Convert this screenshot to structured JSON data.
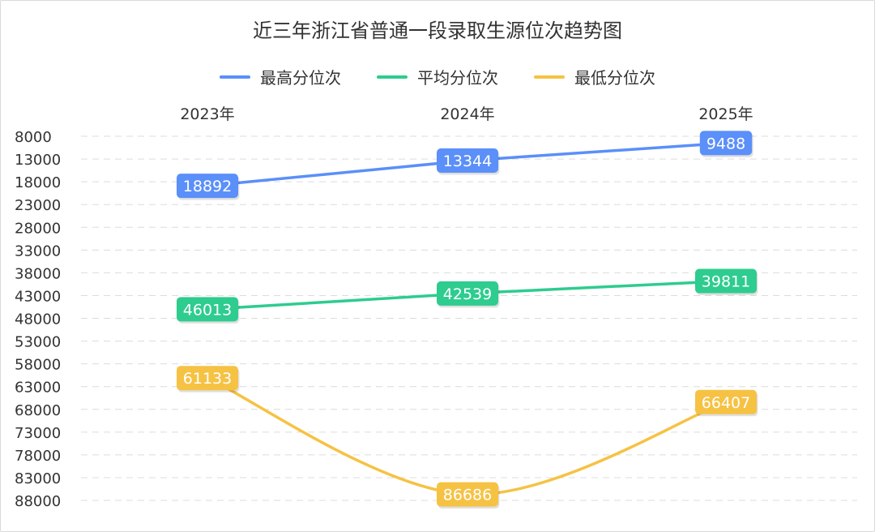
{
  "chart_data": {
    "type": "line",
    "title": "近三年浙江省普通一段录取生源位次趋势图",
    "categories": [
      "2023年",
      "2024年",
      "2025年"
    ],
    "y_ticks": [
      "8000",
      "13000",
      "18000",
      "23000",
      "28000",
      "33000",
      "38000",
      "43000",
      "48000",
      "53000",
      "58000",
      "63000",
      "68000",
      "73000",
      "78000",
      "83000",
      "88000"
    ],
    "ylim": [
      8000,
      88000
    ],
    "y_inverted": true,
    "grid": true,
    "legend_position": "top",
    "series": [
      {
        "name": "最高分位次",
        "values": [
          18892,
          13344,
          9488
        ],
        "color": "#5b8ff9",
        "labels": [
          "18892",
          "13344",
          "9488"
        ],
        "curve": "linear"
      },
      {
        "name": "平均分位次",
        "values": [
          46013,
          42539,
          39811
        ],
        "color": "#2ecc8f",
        "labels": [
          "46013",
          "42539",
          "39811"
        ],
        "curve": "linear"
      },
      {
        "name": "最低分位次",
        "values": [
          61133,
          86686,
          66407
        ],
        "color": "#f6c244",
        "labels": [
          "61133",
          "86686",
          "66407"
        ],
        "curve": "smooth"
      }
    ]
  }
}
